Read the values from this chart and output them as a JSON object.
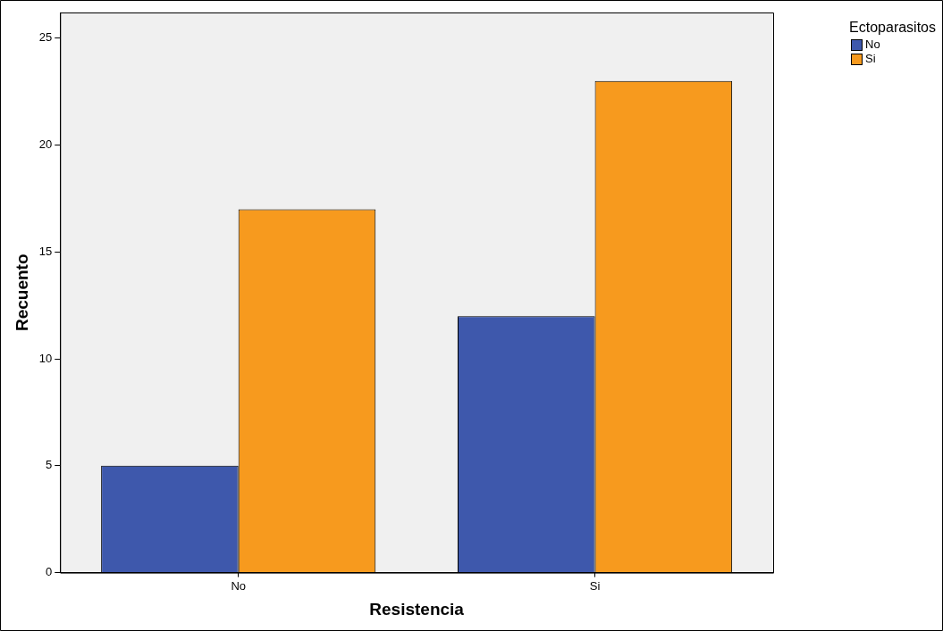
{
  "chart_data": {
    "type": "bar",
    "xlabel": "Resistencia",
    "ylabel": "Recuento",
    "legend_title": "Ectoparasitos",
    "categories": [
      "No",
      "Si"
    ],
    "series": [
      {
        "name": "No",
        "color": "#3e58ac",
        "values": [
          5,
          12
        ]
      },
      {
        "name": "Si",
        "color": "#f79a1e",
        "values": [
          17,
          23
        ]
      }
    ],
    "ylim": [
      0,
      26.2
    ],
    "yticks": [
      0,
      5,
      10,
      15,
      20,
      25
    ],
    "grid": false,
    "legend": "top right"
  }
}
